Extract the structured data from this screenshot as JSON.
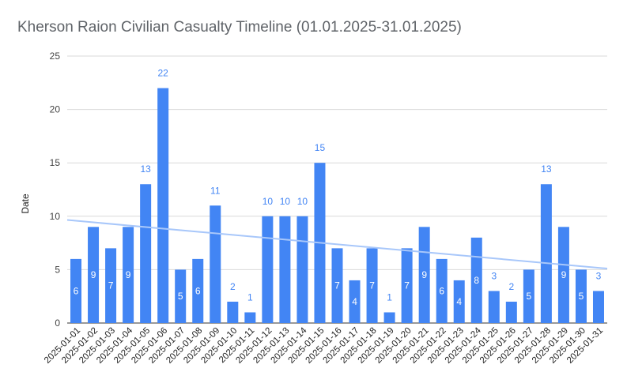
{
  "chart_data": {
    "type": "bar",
    "title": "Kherson Raion Civilian Casualty Timeline (01.01.2025-31.01.2025)",
    "xlabel": "",
    "ylabel": "Date",
    "ylim": [
      0,
      25
    ],
    "yticks": [
      0,
      5,
      10,
      15,
      20,
      25
    ],
    "grid": true,
    "legend": "none",
    "bar_color": "#4285f4",
    "trendline": {
      "type": "linear",
      "color": "#a8c7fa",
      "start": 9.65,
      "end": 5.1
    },
    "categories": [
      "2025-01-01",
      "2025-01-02",
      "2025-01-03",
      "2025-01-04",
      "2025-01-05",
      "2025-01-06",
      "2025-01-07",
      "2025-01-08",
      "2025-01-09",
      "2025-01-10",
      "2025-01-11",
      "2025-01-12",
      "2025-01-13",
      "2025-01-14",
      "2025-01-15",
      "2025-01-16",
      "2025-01-17",
      "2025-01-18",
      "2025-01-19",
      "2025-01-20",
      "2025-01-21",
      "2025-01-22",
      "2025-01-23",
      "2025-01-24",
      "2025-01-25",
      "2025-01-26",
      "2025-01-27",
      "2025-01-28",
      "2025-01-29",
      "2025-01-30",
      "2025-01-31"
    ],
    "values": [
      6,
      9,
      7,
      9,
      13,
      22,
      5,
      6,
      11,
      2,
      1,
      10,
      10,
      10,
      15,
      7,
      4,
      7,
      1,
      7,
      9,
      6,
      4,
      8,
      3,
      2,
      5,
      13,
      9,
      5,
      3
    ]
  }
}
